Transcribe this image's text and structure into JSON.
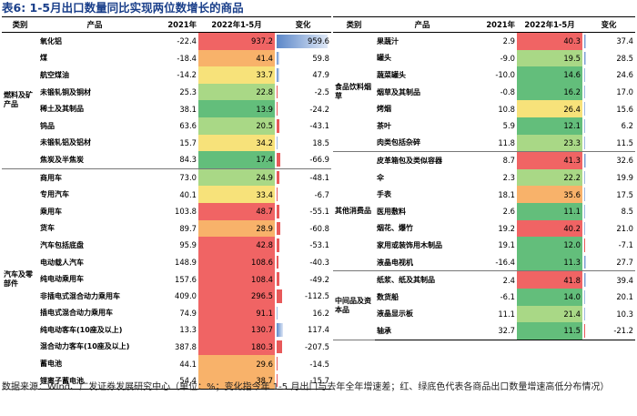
{
  "title": "表6:  1-5月出口数量同比实现两位数增长的商品",
  "headers": {
    "category": "类别",
    "product": "产品",
    "y2021": "2021年",
    "y2022": "2022年1-5月",
    "change": "变化"
  },
  "colors": {
    "red": "#f06464",
    "orange": "#f8b26a",
    "yellow": "#f7e27a",
    "lightgreen": "#a9d886",
    "green": "#63be7b",
    "bar_pos": "#5b87c9",
    "bar_neg": "#e8595a"
  },
  "left_groups": [
    {
      "name": "燃料及矿产品",
      "rows": [
        {
          "product": "氧化铝",
          "y2021": "-22.4",
          "y2022": "937.2",
          "change": "959.6",
          "cls": "red",
          "chg": 959.6
        },
        {
          "product": "煤",
          "y2021": "-18.4",
          "y2022": "41.4",
          "change": "59.8",
          "cls": "orange",
          "chg": 59.8
        },
        {
          "product": "航空煤油",
          "y2021": "-14.2",
          "y2022": "33.7",
          "change": "47.9",
          "cls": "yellow",
          "chg": 47.9
        },
        {
          "product": "未锻轧铜及铜材",
          "y2021": "25.3",
          "y2022": "22.8",
          "change": "-2.5",
          "cls": "lightgreen",
          "chg": -2.5
        },
        {
          "product": "稀土及其制品",
          "y2021": "38.1",
          "y2022": "13.9",
          "change": "-24.2",
          "cls": "green",
          "chg": -24.2
        },
        {
          "product": "钨品",
          "y2021": "63.6",
          "y2022": "20.5",
          "change": "-43.1",
          "cls": "lightgreen",
          "chg": -43.1
        },
        {
          "product": "未锻轧铝及铝材",
          "y2021": "15.7",
          "y2022": "34.2",
          "change": "18.5",
          "cls": "yellow",
          "chg": 18.5
        },
        {
          "product": "焦炭及半焦炭",
          "y2021": "84.3",
          "y2022": "17.4",
          "change": "-66.9",
          "cls": "green",
          "chg": -66.9
        }
      ]
    },
    {
      "name": "汽车及零部件",
      "rows": [
        {
          "product": "商用车",
          "y2021": "73.0",
          "y2022": "24.9",
          "change": "-48.1",
          "cls": "lightgreen",
          "chg": -48.1
        },
        {
          "product": "专用汽车",
          "y2021": "40.1",
          "y2022": "33.4",
          "change": "-6.7",
          "cls": "yellow",
          "chg": -6.7
        },
        {
          "product": "乘用车",
          "y2021": "103.8",
          "y2022": "48.7",
          "change": "-55.1",
          "cls": "red",
          "chg": -55.1
        },
        {
          "product": "货车",
          "y2021": "89.7",
          "y2022": "28.9",
          "change": "-60.8",
          "cls": "orange",
          "chg": -60.8
        },
        {
          "product": "汽车包括底盘",
          "y2021": "95.9",
          "y2022": "42.8",
          "change": "-53.1",
          "cls": "red",
          "chg": -53.1
        },
        {
          "product": "电动载人汽车",
          "y2021": "148.9",
          "y2022": "108.6",
          "change": "-40.3",
          "cls": "red",
          "chg": -40.3
        },
        {
          "product": "纯电动乘用车",
          "y2021": "157.6",
          "y2022": "108.4",
          "change": "-49.2",
          "cls": "red",
          "chg": -49.2
        },
        {
          "product": "非插电式混合动力乘用车",
          "y2021": "409.0",
          "y2022": "296.5",
          "change": "-112.5",
          "cls": "red",
          "chg": -112.5
        },
        {
          "product": "插电式混合动力乘用车",
          "y2021": "74.9",
          "y2022": "91.1",
          "change": "16.2",
          "cls": "red",
          "chg": 16.2
        },
        {
          "product": "纯电动客车(10座及以上)",
          "y2021": "13.3",
          "y2022": "130.7",
          "change": "117.4",
          "cls": "red",
          "chg": 117.4
        },
        {
          "product": "混合动力客车(10座及以上)",
          "y2021": "387.8",
          "y2022": "180.3",
          "change": "-207.5",
          "cls": "red",
          "chg": -207.5
        },
        {
          "product": "蓄电池",
          "y2021": "44.1",
          "y2022": "29.6",
          "change": "-14.5",
          "cls": "orange",
          "chg": -14.5
        },
        {
          "product": "锂离子蓄电池",
          "y2021": "54.4",
          "y2022": "38.7",
          "change": "-15.7",
          "cls": "orange",
          "chg": -15.7
        }
      ]
    }
  ],
  "right_groups": [
    {
      "name": "食品饮料烟草",
      "rows": [
        {
          "product": "果蔬汁",
          "y2021": "2.9",
          "y2022": "40.3",
          "change": "37.4",
          "cls": "red",
          "chg": 37.4
        },
        {
          "product": "罐头",
          "y2021": "-9.0",
          "y2022": "19.5",
          "change": "28.5",
          "cls": "lightgreen",
          "chg": 28.5
        },
        {
          "product": "蔬菜罐头",
          "y2021": "-10.0",
          "y2022": "14.6",
          "change": "24.6",
          "cls": "green",
          "chg": 24.6
        },
        {
          "product": "烟草及其制品",
          "y2021": "-0.8",
          "y2022": "16.2",
          "change": "17.0",
          "cls": "green",
          "chg": 17.0
        },
        {
          "product": "烤烟",
          "y2021": "10.8",
          "y2022": "26.4",
          "change": "15.6",
          "cls": "yellow",
          "chg": 15.6
        },
        {
          "product": "茶叶",
          "y2021": "5.9",
          "y2022": "12.1",
          "change": "6.2",
          "cls": "green",
          "chg": 6.2
        },
        {
          "product": "肉类包括杂碎",
          "y2021": "11.8",
          "y2022": "23.3",
          "change": "11.5",
          "cls": "lightgreen",
          "chg": 11.5
        }
      ]
    },
    {
      "name": "其他消费品",
      "rows": [
        {
          "product": "皮革箱包及类似容器",
          "y2021": "8.7",
          "y2022": "41.3",
          "change": "32.6",
          "cls": "red",
          "chg": 32.6
        },
        {
          "product": "伞",
          "y2021": "2.3",
          "y2022": "22.2",
          "change": "19.9",
          "cls": "lightgreen",
          "chg": 19.9
        },
        {
          "product": "手表",
          "y2021": "18.1",
          "y2022": "35.6",
          "change": "17.5",
          "cls": "orange",
          "chg": 17.5
        },
        {
          "product": "医用敷料",
          "y2021": "2.6",
          "y2022": "11.1",
          "change": "8.5",
          "cls": "green",
          "chg": 8.5
        },
        {
          "product": "烟花、爆竹",
          "y2021": "19.2",
          "y2022": "40.2",
          "change": "21.0",
          "cls": "red",
          "chg": 21.0
        },
        {
          "product": "家用或装饰用木制品",
          "y2021": "19.1",
          "y2022": "12.0",
          "change": "-7.1",
          "cls": "green",
          "chg": -7.1
        },
        {
          "product": "液晶电视机",
          "y2021": "-16.4",
          "y2022": "11.3",
          "change": "27.7",
          "cls": "green",
          "chg": 27.7
        }
      ]
    },
    {
      "name": "中间品及资本品",
      "rows": [
        {
          "product": "纸浆、纸及其制品",
          "y2021": "2.4",
          "y2022": "41.8",
          "change": "39.4",
          "cls": "red",
          "chg": 39.4
        },
        {
          "product": "数货船",
          "y2021": "-6.1",
          "y2022": "14.0",
          "change": "20.1",
          "cls": "green",
          "chg": 20.1
        },
        {
          "product": "液晶显示板",
          "y2021": "11.1",
          "y2022": "21.4",
          "change": "10.3",
          "cls": "lightgreen",
          "chg": 10.3
        },
        {
          "product": "轴承",
          "y2021": "32.7",
          "y2022": "11.5",
          "change": "-21.2",
          "cls": "green",
          "chg": -21.2
        }
      ]
    }
  ],
  "source": "数据来源：Wind、广发证券发展研究中心（单位：%；变化指今年 1-5 月出口与去年全年增速差；红、绿底色代表各商品出口数量增速高低分布情况）"
}
